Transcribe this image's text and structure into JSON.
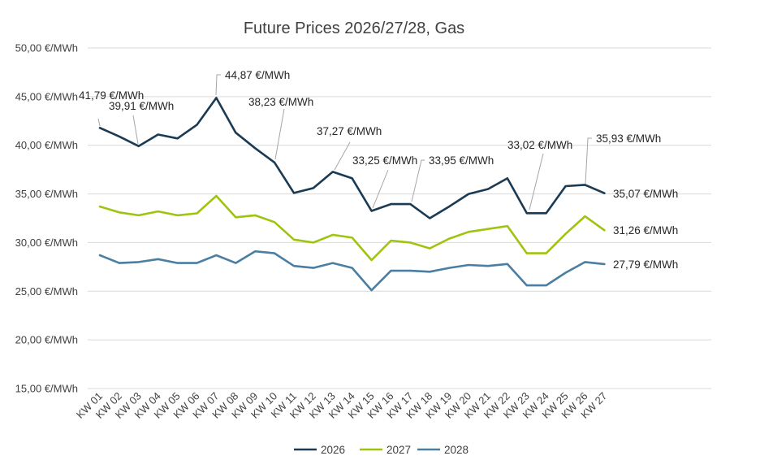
{
  "chart_data": {
    "type": "line",
    "title": "Future Prices 2026/27/28, Gas",
    "xlabel": "",
    "ylabel": "",
    "unit_suffix": " €/MWh",
    "ylim": [
      15,
      50
    ],
    "yticks": [
      15,
      20,
      25,
      30,
      35,
      40,
      45,
      50
    ],
    "ytick_labels": [
      "15,00 €/MWh",
      "20,00 €/MWh",
      "25,00 €/MWh",
      "30,00 €/MWh",
      "35,00 €/MWh",
      "40,00 €/MWh",
      "45,00 €/MWh",
      "50,00 €/MWh"
    ],
    "grid": true,
    "legend_position": "bottom",
    "categories": [
      "KW 01",
      "KW 02",
      "KW 03",
      "KW 04",
      "KW 05",
      "KW 06",
      "KW 07",
      "KW 08",
      "KW 09",
      "KW 10",
      "KW 11",
      "KW 12",
      "KW 13",
      "KW 14",
      "KW 15",
      "KW 16",
      "KW 17",
      "KW 18",
      "KW 19",
      "KW 20",
      "KW 21",
      "KW 22",
      "KW 23",
      "KW 24",
      "KW 25",
      "KW 26",
      "KW 27"
    ],
    "series": [
      {
        "name": "2026",
        "color": "#1b3a53",
        "values": [
          41.79,
          40.9,
          39.91,
          41.1,
          40.7,
          42.1,
          44.87,
          41.3,
          39.7,
          38.23,
          35.1,
          35.6,
          37.27,
          36.6,
          33.25,
          33.95,
          33.95,
          32.5,
          33.7,
          35.0,
          35.5,
          36.6,
          33.02,
          33.02,
          35.8,
          35.93,
          35.07
        ]
      },
      {
        "name": "2027",
        "color": "#9fc40f",
        "values": [
          33.7,
          33.1,
          32.8,
          33.2,
          32.8,
          33.0,
          34.8,
          32.6,
          32.8,
          32.1,
          30.3,
          30.0,
          30.8,
          30.5,
          28.2,
          30.2,
          30.0,
          29.4,
          30.4,
          31.1,
          31.4,
          31.7,
          28.9,
          28.9,
          30.9,
          32.7,
          31.26
        ]
      },
      {
        "name": "2028",
        "color": "#4a7ea2",
        "values": [
          28.7,
          27.9,
          28.0,
          28.3,
          27.9,
          27.9,
          28.7,
          27.9,
          29.1,
          28.9,
          27.6,
          27.4,
          27.9,
          27.4,
          25.1,
          27.1,
          27.1,
          27.0,
          27.4,
          27.7,
          27.6,
          27.8,
          25.6,
          25.6,
          26.9,
          28.0,
          27.79
        ]
      }
    ],
    "annotations": [
      {
        "series": 0,
        "index": 0,
        "text": "41,79 €/MWh"
      },
      {
        "series": 0,
        "index": 2,
        "text": "39,91 €/MWh"
      },
      {
        "series": 0,
        "index": 6,
        "text": "44,87 €/MWh"
      },
      {
        "series": 0,
        "index": 9,
        "text": "38,23 €/MWh"
      },
      {
        "series": 0,
        "index": 12,
        "text": "37,27 €/MWh"
      },
      {
        "series": 0,
        "index": 14,
        "text": "33,25 €/MWh"
      },
      {
        "series": 0,
        "index": 16,
        "text": "33,95 €/MWh"
      },
      {
        "series": 0,
        "index": 22,
        "text": "33,02 €/MWh"
      },
      {
        "series": 0,
        "index": 25,
        "text": "35,93 €/MWh"
      },
      {
        "series": 0,
        "index": 26,
        "text": "35,07 €/MWh"
      },
      {
        "series": 1,
        "index": 26,
        "text": "31,26 €/MWh"
      },
      {
        "series": 2,
        "index": 26,
        "text": "27,79 €/MWh"
      }
    ]
  }
}
